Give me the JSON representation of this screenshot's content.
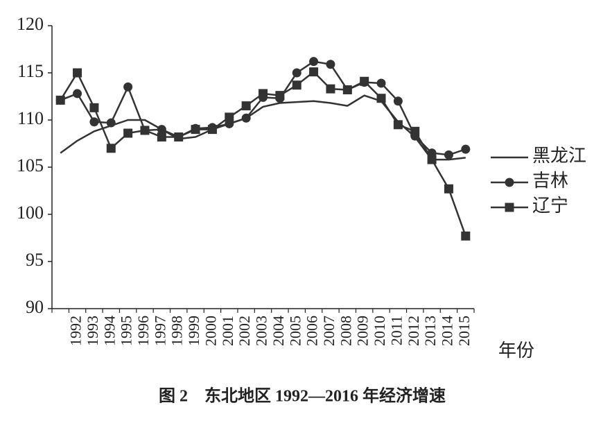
{
  "chart_data": {
    "type": "line",
    "caption": "图 2　东北地区 1992—2016 年经济增速",
    "x_label": "年份",
    "categories": [
      null,
      "1992",
      "1993",
      "1994",
      "1995",
      "1996",
      "1997",
      "1998",
      "1999",
      "2000",
      "2001",
      "2002",
      "2003",
      "2004",
      "2005",
      "2006",
      "2007",
      "2008",
      "2009",
      "2010",
      "2011",
      "2012",
      "2013",
      "2014",
      "2015"
    ],
    "series": [
      {
        "name": "黑龙江",
        "color": "#333333",
        "marker": "none",
        "values": [
          106.5,
          107.8,
          108.8,
          109.4,
          110.0,
          110.0,
          109.0,
          108.0,
          108.2,
          109.0,
          109.6,
          110.2,
          111.4,
          111.8,
          111.9,
          112.0,
          111.8,
          111.5,
          112.6,
          112.0,
          109.8,
          108.2,
          105.8,
          105.8,
          106.0
        ]
      },
      {
        "name": "吉林",
        "color": "#333333",
        "marker": "circle",
        "values": [
          112.1,
          112.8,
          109.8,
          109.7,
          113.5,
          108.9,
          109.0,
          108.2,
          109.1,
          109.2,
          109.6,
          110.2,
          112.4,
          112.3,
          115.0,
          116.2,
          115.9,
          113.2,
          114.0,
          113.9,
          112.0,
          108.3,
          106.5,
          106.3,
          106.9
        ]
      },
      {
        "name": "辽宁",
        "color": "#333333",
        "marker": "square",
        "values": [
          112.1,
          115.0,
          111.3,
          107.0,
          108.6,
          108.9,
          108.2,
          108.2,
          109.0,
          109.0,
          110.3,
          111.5,
          112.8,
          112.6,
          113.7,
          115.1,
          113.3,
          113.2,
          114.1,
          112.3,
          109.5,
          108.8,
          105.8,
          102.7,
          97.7
        ]
      }
    ],
    "ylim": [
      90,
      120
    ],
    "yticks": [
      90,
      95,
      100,
      105,
      110,
      115,
      120
    ],
    "grid": false
  }
}
